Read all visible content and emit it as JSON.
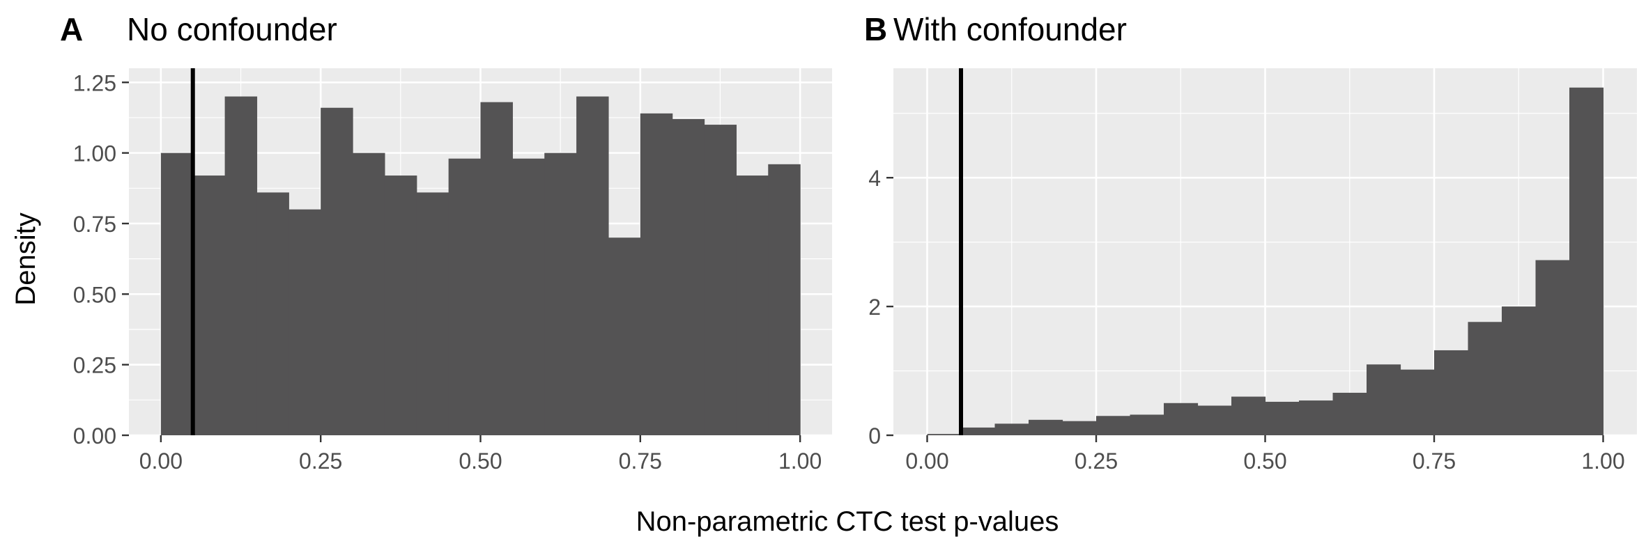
{
  "shared": {
    "ylabel": "Density",
    "xlabel": "Non-parametric CTC test p-values",
    "threshold_line_x": 0.05,
    "bar_color": "#545354",
    "panel_bg": "#EBEBEB",
    "grid_color": "#FFFFFF",
    "tick_label_color": "#4D4D4D"
  },
  "chart_data": [
    {
      "type": "bar",
      "panel_tag": "A",
      "title": "No confounder",
      "xlim": [
        -0.05,
        1.05
      ],
      "ylim": [
        0,
        1.3
      ],
      "x_ticks": [
        0,
        0.25,
        0.5,
        0.75,
        1.0
      ],
      "x_tick_labels": [
        "0.00",
        "0.25",
        "0.50",
        "0.75",
        "1.00"
      ],
      "y_ticks": [
        0,
        0.25,
        0.5,
        0.75,
        1.0,
        1.25
      ],
      "y_tick_labels": [
        "0.00",
        "0.25",
        "0.50",
        "0.75",
        "1.00",
        "1.25"
      ],
      "bin_edges": [
        0.0,
        0.05,
        0.1,
        0.15,
        0.2,
        0.25,
        0.3,
        0.35,
        0.4,
        0.45,
        0.5,
        0.55,
        0.6,
        0.65,
        0.7,
        0.75,
        0.8,
        0.85,
        0.9,
        0.95,
        1.0
      ],
      "values": [
        1.0,
        0.92,
        1.2,
        0.86,
        0.8,
        1.16,
        1.0,
        0.92,
        0.86,
        0.98,
        1.18,
        0.98,
        1.0,
        1.2,
        0.7,
        1.14,
        1.12,
        1.1,
        0.92,
        0.96
      ],
      "vline": 0.05
    },
    {
      "type": "bar",
      "panel_tag": "B",
      "title": "With confounder",
      "xlim": [
        -0.05,
        1.05
      ],
      "ylim": [
        0,
        5.7
      ],
      "x_ticks": [
        0,
        0.25,
        0.5,
        0.75,
        1.0
      ],
      "x_tick_labels": [
        "0.00",
        "0.25",
        "0.50",
        "0.75",
        "1.00"
      ],
      "y_ticks": [
        0,
        2,
        4
      ],
      "y_tick_labels": [
        "0",
        "2",
        "4"
      ],
      "bin_edges": [
        0.0,
        0.05,
        0.1,
        0.15,
        0.2,
        0.25,
        0.3,
        0.35,
        0.4,
        0.45,
        0.5,
        0.55,
        0.6,
        0.65,
        0.7,
        0.75,
        0.8,
        0.85,
        0.9,
        0.95,
        1.0
      ],
      "values": [
        0.02,
        0.12,
        0.18,
        0.24,
        0.22,
        0.3,
        0.32,
        0.5,
        0.46,
        0.6,
        0.52,
        0.54,
        0.66,
        1.1,
        1.02,
        1.32,
        1.76,
        2.0,
        2.72,
        5.4
      ],
      "vline": 0.05
    }
  ]
}
